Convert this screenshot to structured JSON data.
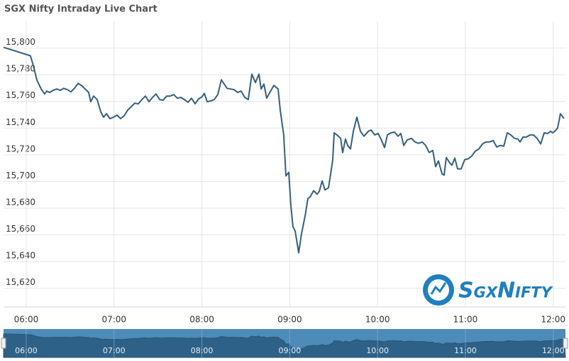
{
  "chart_data": {
    "type": "line",
    "title": "SGX Nifty Intraday Live Chart",
    "watermark": "SgxNifty",
    "color": "#35607f",
    "grid": true,
    "xlim": [
      5.742,
      12.139
    ],
    "ylim": [
      15606,
      15820
    ],
    "xticks": [
      {
        "value": 6,
        "label": "06:00"
      },
      {
        "value": 7,
        "label": "07:00"
      },
      {
        "value": 8,
        "label": "08:00"
      },
      {
        "value": 9,
        "label": "09:00"
      },
      {
        "value": 10,
        "label": "10:00"
      },
      {
        "value": 11,
        "label": "11:00"
      },
      {
        "value": 12,
        "label": "12:00"
      }
    ],
    "yticks": [
      {
        "value": 15800,
        "label": "15,800"
      },
      {
        "value": 15780,
        "label": "15,780"
      },
      {
        "value": 15760,
        "label": "15,760"
      },
      {
        "value": 15740,
        "label": "15,740"
      },
      {
        "value": 15720,
        "label": "15,720"
      },
      {
        "value": 15700,
        "label": "15,700"
      },
      {
        "value": 15680,
        "label": "15,680"
      },
      {
        "value": 15660,
        "label": "15,660"
      },
      {
        "value": 15640,
        "label": "15,640"
      },
      {
        "value": 15620,
        "label": "15,620"
      }
    ],
    "x": [
      5.742,
      6.048,
      6.081,
      6.121,
      6.17,
      6.21,
      6.234,
      6.267,
      6.307,
      6.347,
      6.388,
      6.428,
      6.469,
      6.509,
      6.549,
      6.59,
      6.63,
      6.67,
      6.711,
      6.735,
      6.767,
      6.808,
      6.848,
      6.881,
      6.913,
      6.953,
      6.994,
      7.034,
      7.074,
      7.115,
      7.155,
      7.196,
      7.236,
      7.276,
      7.317,
      7.357,
      7.398,
      7.438,
      7.478,
      7.519,
      7.559,
      7.599,
      7.64,
      7.68,
      7.721,
      7.761,
      7.801,
      7.842,
      7.882,
      7.923,
      7.963,
      8.003,
      8.028,
      8.06,
      8.1,
      8.141,
      8.181,
      8.222,
      8.254,
      8.286,
      8.327,
      8.367,
      8.407,
      8.448,
      8.488,
      8.528,
      8.569,
      8.609,
      8.65,
      8.674,
      8.706,
      8.738,
      8.787,
      8.819,
      8.868,
      8.892,
      8.932,
      8.957,
      8.989,
      9.013,
      9.037,
      9.062,
      9.102,
      9.134,
      9.175,
      9.207,
      9.231,
      9.272,
      9.312,
      9.336,
      9.369,
      9.401,
      9.441,
      9.466,
      9.49,
      9.506,
      9.538,
      9.579,
      9.603,
      9.635,
      9.659,
      9.692,
      9.724,
      9.764,
      9.805,
      9.845,
      9.894,
      9.926,
      9.967,
      10.007,
      10.039,
      10.08,
      10.112,
      10.152,
      10.193,
      10.233,
      10.264,
      10.298,
      10.338,
      10.386,
      10.427,
      10.467,
      10.508,
      10.548,
      10.588,
      10.629,
      10.661,
      10.693,
      10.734,
      10.758,
      10.782,
      10.823,
      10.847,
      10.879,
      10.911,
      10.952,
      10.992,
      11.032,
      11.073,
      11.113,
      11.153,
      11.194,
      11.234,
      11.275,
      11.315,
      11.356,
      11.396,
      11.437,
      11.477,
      11.517,
      11.558,
      11.598,
      11.622,
      11.655,
      11.695,
      11.735,
      11.776,
      11.816,
      11.857,
      11.897,
      11.937,
      11.97,
      11.994,
      12.026,
      12.05,
      12.082,
      12.123
    ],
    "values": [
      15800.5,
      15794.2,
      15786.8,
      15776.2,
      15769.3,
      15765.6,
      15767.7,
      15766.7,
      15768.3,
      15769.3,
      15768.3,
      15769.8,
      15768.8,
      15767.2,
      15769.8,
      15773.5,
      15772.0,
      15769.3,
      15766.7,
      15759.8,
      15764.0,
      15761.4,
      15752.4,
      15748.2,
      15750.8,
      15747.1,
      15748.2,
      15749.7,
      15747.1,
      15749.2,
      15753.4,
      15756.1,
      15758.7,
      15758.2,
      15761.4,
      15764.0,
      15759.8,
      15763.0,
      15765.6,
      15761.4,
      15760.9,
      15764.0,
      15764.0,
      15765.1,
      15762.4,
      15763.0,
      15761.4,
      15759.3,
      15762.4,
      15758.2,
      15761.9,
      15763.5,
      15766.1,
      15759.8,
      15760.3,
      15761.4,
      15765.1,
      15776.2,
      15773.0,
      15769.8,
      15769.3,
      15768.8,
      15766.7,
      15767.7,
      15763.0,
      15761.4,
      15780.4,
      15774.1,
      15780.4,
      15769.3,
      15773.0,
      15762.4,
      15768.3,
      15772.0,
      15769.3,
      15753.4,
      15734.9,
      15704.2,
      15706.9,
      15682.0,
      15666.2,
      15663.0,
      15646.6,
      15660.9,
      15674.1,
      15687.3,
      15688.4,
      15693.1,
      15690.5,
      15692.6,
      15700.5,
      15693.7,
      15695.3,
      15705.8,
      15716.4,
      15736.5,
      15734.9,
      15732.3,
      15721.7,
      15731.8,
      15727.0,
      15724.4,
      15737.6,
      15748.2,
      15737.6,
      15733.9,
      15737.6,
      15738.6,
      15734.9,
      15736.0,
      15731.8,
      15725.4,
      15734.9,
      15736.5,
      15737.0,
      15733.9,
      15736.0,
      15727.0,
      15731.2,
      15732.3,
      15729.6,
      15728.6,
      15729.6,
      15727.0,
      15721.7,
      15723.3,
      15711.1,
      15715.4,
      15705.8,
      15704.8,
      15718.0,
      15713.8,
      15712.2,
      15717.5,
      15709.5,
      15709.5,
      15716.4,
      15717.0,
      15719.1,
      15722.8,
      15724.4,
      15728.1,
      15729.6,
      15729.6,
      15730.7,
      15725.9,
      15727.0,
      15726.5,
      15736.5,
      15734.9,
      15732.3,
      15731.8,
      15729.6,
      15733.3,
      15733.3,
      15734.9,
      15734.9,
      15732.3,
      15728.1,
      15736.5,
      15736.0,
      15737.6,
      15736.5,
      15738.1,
      15740.2,
      15750.8,
      15747.1
    ]
  }
}
